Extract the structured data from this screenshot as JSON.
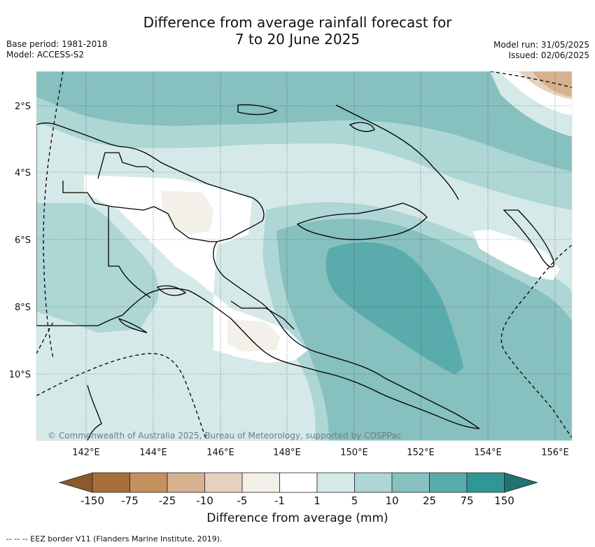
{
  "title": {
    "line1": "Difference from average rainfall forecast for",
    "line2": "7 to 20 June 2025"
  },
  "meta": {
    "base_period": "Base period: 1981-2018",
    "model": "Model: ACCESS-S2",
    "model_run": "Model run: 31/05/2025",
    "issued": "Issued: 02/06/2025"
  },
  "map": {
    "longitude_ticks": [
      "142°E",
      "144°E",
      "146°E",
      "148°E",
      "150°E",
      "152°E",
      "154°E",
      "156°E"
    ],
    "latitude_ticks": [
      "2°S",
      "4°S",
      "6°S",
      "8°S",
      "10°S"
    ],
    "copyright": "© Commonwealth of Australia 2025, Bureau of Meteorology, supported by COSPPac"
  },
  "legend": {
    "label": "Difference from average (mm)",
    "ticks": [
      "-150",
      "-75",
      "-25",
      "-10",
      "-5",
      "-1",
      "1",
      "5",
      "10",
      "25",
      "75",
      "150"
    ],
    "colors": [
      "#a86f3b",
      "#c4925f",
      "#d5b18f",
      "#e6d1bf",
      "#f3efe9",
      "#ffffff",
      "#d5e9e8",
      "#add6d5",
      "#86c0bf",
      "#5aabab",
      "#2f9895"
    ],
    "extend_low_color": "#8b5a2b",
    "extend_high_color": "#217371"
  },
  "footnote": "-- -- -- EEZ border V11 (Flanders Marine Institute, 2019)."
}
